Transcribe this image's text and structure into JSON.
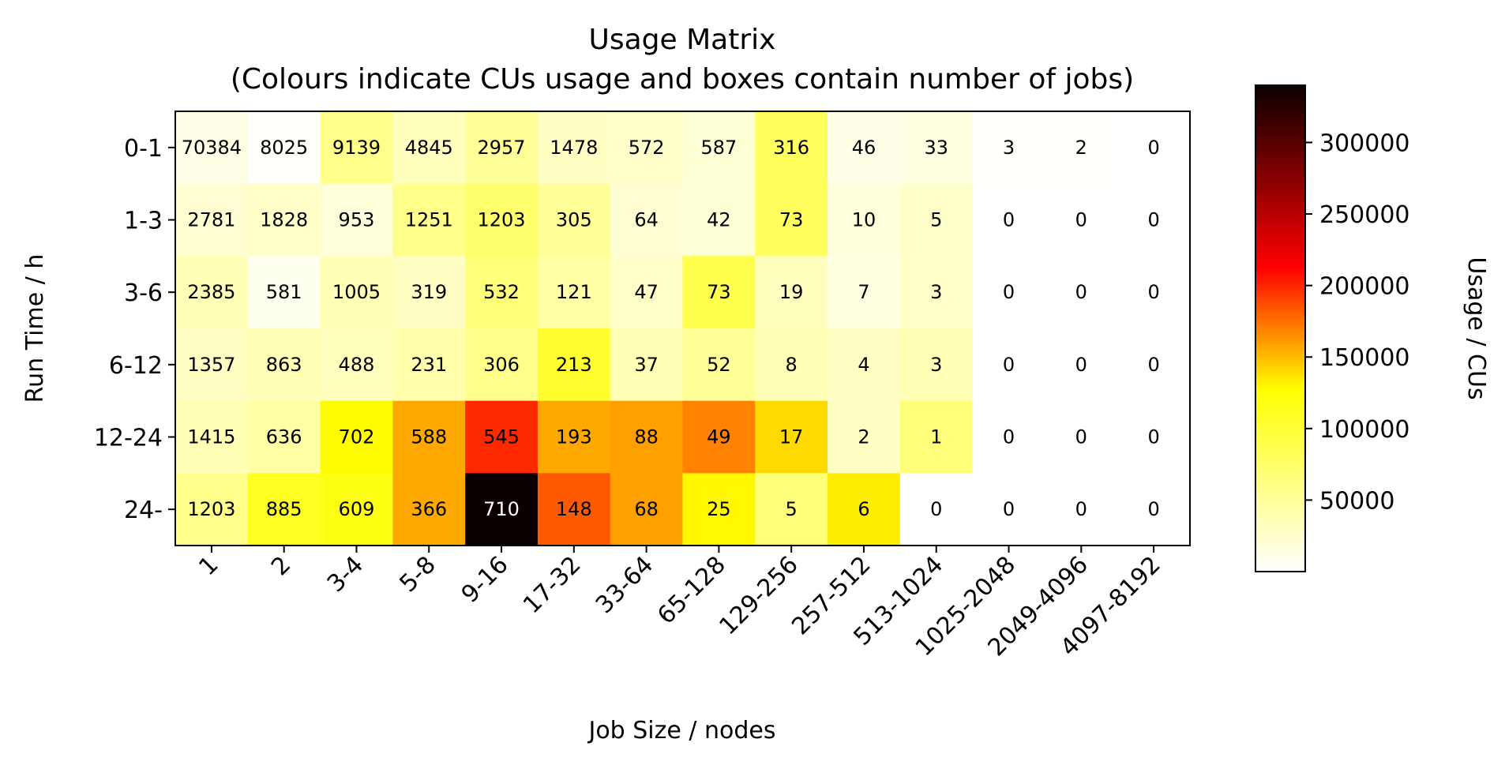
{
  "chart_data": {
    "type": "heatmap",
    "title": "Usage Matrix",
    "subtitle": "(Colours indicate CUs usage and boxes contain number of jobs)",
    "xlabel": "Job Size / nodes",
    "ylabel": "Run Time / h",
    "x_categories": [
      "1",
      "2",
      "3-4",
      "5-8",
      "9-16",
      "17-32",
      "33-64",
      "65-128",
      "129-256",
      "257-512",
      "513-1024",
      "1025-2048",
      "2049-4096",
      "4097-8192"
    ],
    "y_categories": [
      "0-1",
      "1-3",
      "3-6",
      "6-12",
      "12-24",
      "24-"
    ],
    "jobs": [
      [
        70384,
        8025,
        9139,
        4845,
        2957,
        1478,
        572,
        587,
        316,
        46,
        33,
        3,
        2,
        0
      ],
      [
        2781,
        1828,
        953,
        1251,
        1203,
        305,
        64,
        42,
        73,
        10,
        5,
        0,
        0,
        0
      ],
      [
        2385,
        581,
        1005,
        319,
        532,
        121,
        47,
        73,
        19,
        7,
        3,
        0,
        0,
        0
      ],
      [
        1357,
        863,
        488,
        231,
        306,
        213,
        37,
        52,
        8,
        4,
        3,
        0,
        0,
        0
      ],
      [
        1415,
        636,
        702,
        588,
        545,
        193,
        88,
        49,
        17,
        2,
        1,
        0,
        0,
        0
      ],
      [
        1203,
        885,
        609,
        366,
        710,
        148,
        68,
        25,
        5,
        6,
        0,
        0,
        0,
        0
      ]
    ],
    "usage": [
      [
        8000,
        1500,
        40000,
        22000,
        35000,
        20000,
        18000,
        14000,
        55000,
        8000,
        10000,
        1000,
        1000,
        0
      ],
      [
        15000,
        18000,
        12000,
        40000,
        50000,
        35000,
        15000,
        14000,
        55000,
        12000,
        18000,
        0,
        0,
        0
      ],
      [
        25000,
        5000,
        25000,
        20000,
        45000,
        30000,
        18000,
        60000,
        22000,
        10000,
        18000,
        0,
        0,
        0
      ],
      [
        20000,
        25000,
        22000,
        28000,
        40000,
        70000,
        25000,
        35000,
        25000,
        20000,
        25000,
        0,
        0,
        0
      ],
      [
        25000,
        30000,
        88000,
        130000,
        195000,
        130000,
        135000,
        150000,
        105000,
        20000,
        45000,
        0,
        0,
        0
      ],
      [
        40000,
        75000,
        80000,
        130000,
        340000,
        170000,
        135000,
        90000,
        45000,
        95000,
        0,
        0,
        0,
        0
      ]
    ],
    "colorbar": {
      "label": "Usage / CUs",
      "range": [
        0,
        340000
      ],
      "ticks": [
        50000,
        100000,
        150000,
        200000,
        250000,
        300000
      ],
      "tick_labels": [
        "50000",
        "100000",
        "150000",
        "200000",
        "250000",
        "300000"
      ],
      "colormap": "hot_r"
    }
  }
}
